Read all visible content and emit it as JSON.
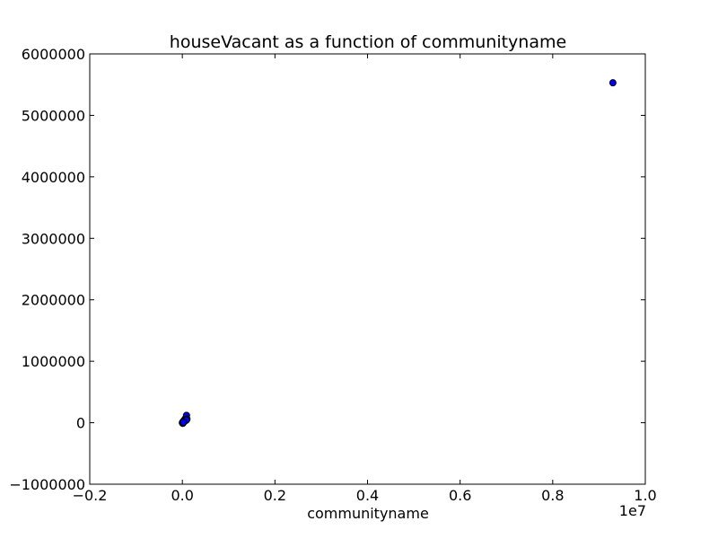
{
  "chart_data": {
    "type": "scatter",
    "title": "houseVacant as a function of communityname",
    "xlabel": "communityname",
    "ylabel": "",
    "x_offset_label": "1e7",
    "xlim": [
      -0.2,
      1.0
    ],
    "ylim": [
      -1000000,
      6000000
    ],
    "x_ticks": [
      -0.2,
      0.0,
      0.2,
      0.4,
      0.6,
      0.8,
      1.0
    ],
    "x_tick_labels": [
      "−0.2",
      "0.0",
      "0.2",
      "0.4",
      "0.6",
      "0.8",
      "1.0"
    ],
    "y_ticks": [
      -1000000,
      0,
      1000000,
      2000000,
      3000000,
      4000000,
      5000000,
      6000000
    ],
    "y_tick_labels": [
      "−1000000",
      "0",
      "1000000",
      "2000000",
      "3000000",
      "4000000",
      "5000000",
      "6000000"
    ],
    "grid": false,
    "marker_color": "#0000ff",
    "marker_edge_color": "#000000",
    "series": [
      {
        "x": [
          0.93,
          0.0,
          0.001,
          0.002,
          0.003,
          0.004,
          0.005,
          0.006,
          0.007,
          0.008,
          0.009,
          0.01,
          0.001,
          0.003,
          0.005,
          0.007,
          0.009,
          0.0005,
          0.0015,
          0.0025
        ],
        "y": [
          5530000,
          0,
          10000,
          20000,
          30000,
          40000,
          50000,
          60000,
          70000,
          80000,
          120000,
          60000,
          -10000,
          15000,
          25000,
          35000,
          45000,
          5000,
          -5000,
          8000
        ]
      }
    ]
  }
}
